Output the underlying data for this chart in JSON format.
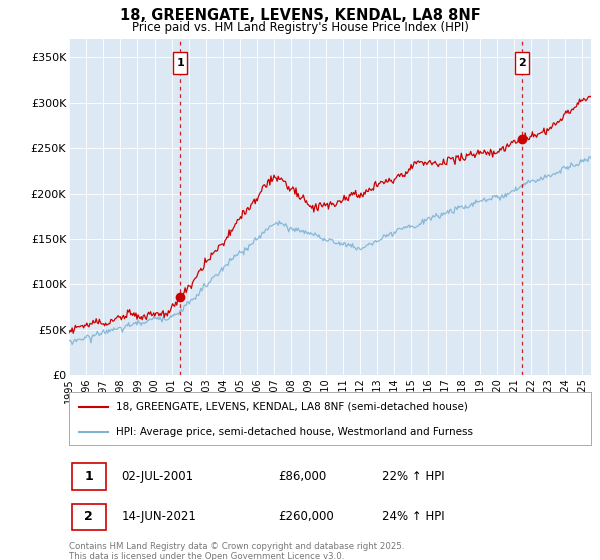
{
  "title": "18, GREENGATE, LEVENS, KENDAL, LA8 8NF",
  "subtitle": "Price paid vs. HM Land Registry's House Price Index (HPI)",
  "ylabel_ticks": [
    "£0",
    "£50K",
    "£100K",
    "£150K",
    "£200K",
    "£250K",
    "£300K",
    "£350K"
  ],
  "ytick_values": [
    0,
    50000,
    100000,
    150000,
    200000,
    250000,
    300000,
    350000
  ],
  "ylim": [
    0,
    370000
  ],
  "xlim_start": 1995.0,
  "xlim_end": 2025.5,
  "sale1_x": 2001.5,
  "sale1_y": 86000,
  "sale1_label": "1",
  "sale2_x": 2021.45,
  "sale2_y": 260000,
  "sale2_label": "2",
  "legend_line1": "18, GREENGATE, LEVENS, KENDAL, LA8 8NF (semi-detached house)",
  "legend_line2": "HPI: Average price, semi-detached house, Westmorland and Furness",
  "footer": "Contains HM Land Registry data © Crown copyright and database right 2025.\nThis data is licensed under the Open Government Licence v3.0.",
  "color_red": "#cc0000",
  "color_blue": "#7fb3d3",
  "color_vline": "#cc0000",
  "background_chart": "#dce9f5",
  "background_fig": "#ffffff",
  "xtick_years": [
    1995,
    1996,
    1997,
    1998,
    1999,
    2000,
    2001,
    2002,
    2003,
    2004,
    2005,
    2006,
    2007,
    2008,
    2009,
    2010,
    2011,
    2012,
    2013,
    2014,
    2015,
    2016,
    2017,
    2018,
    2019,
    2020,
    2021,
    2022,
    2023,
    2024,
    2025
  ],
  "sale1_date": "02-JUL-2001",
  "sale1_price": "£86,000",
  "sale1_pct": "22% ↑ HPI",
  "sale2_date": "14-JUN-2021",
  "sale2_price": "£260,000",
  "sale2_pct": "24% ↑ HPI"
}
